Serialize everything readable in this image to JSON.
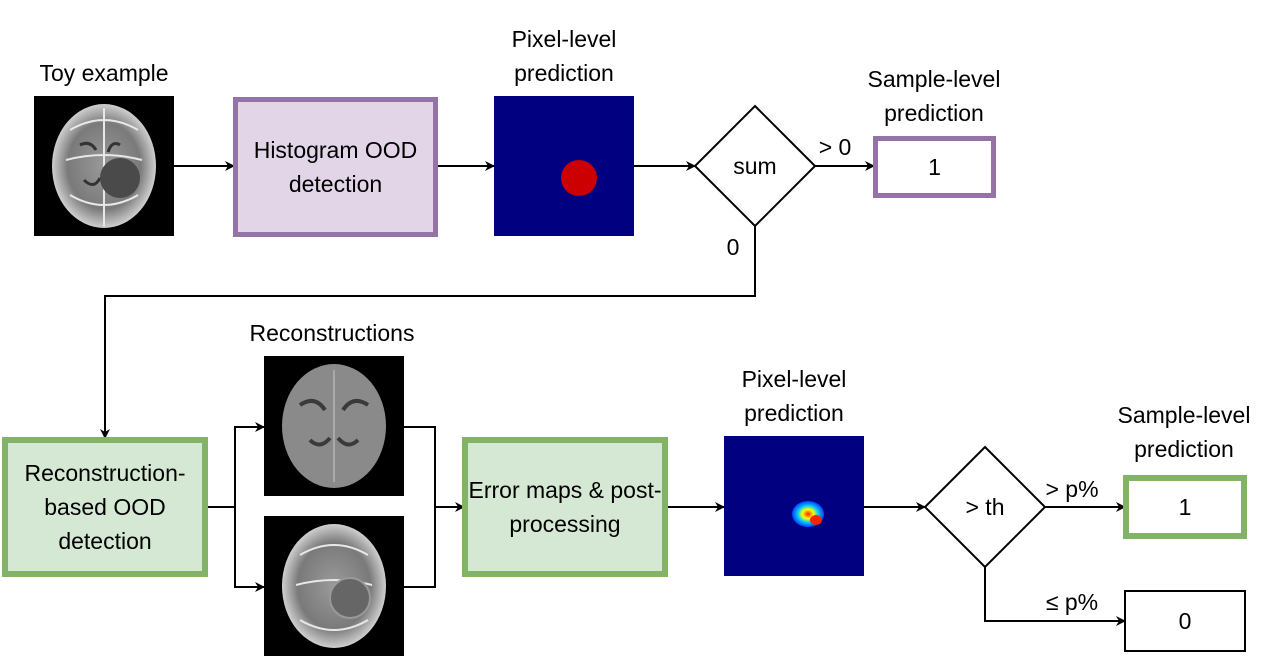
{
  "top": {
    "toy_label": "Toy example",
    "histogram_box": "Histogram OOD detection",
    "pixel_label": "Pixel-level prediction",
    "sum_label": "sum",
    "gt0_label": "> 0",
    "zero_label": "0",
    "sample_label": "Sample-level prediction",
    "sample_value": "1"
  },
  "bottom": {
    "recon_box": "Reconstruction-based OOD detection",
    "recon_label": "Reconstructions",
    "error_box": "Error maps & post-processing",
    "pixel_label": "Pixel-level prediction",
    "threshold_label": "> th",
    "gtp_label": "> p%",
    "lep_label": "≤ p%",
    "sample_label": "Sample-level prediction",
    "sample_value_pos": "1",
    "sample_value_neg": "0"
  },
  "colors": {
    "purple_border": "#9673a6",
    "purple_fill": "#e1d5e7",
    "green_border": "#82b366",
    "green_fill": "#d5e8d4",
    "navy": "#000080",
    "red_dot": "#cc0000"
  }
}
